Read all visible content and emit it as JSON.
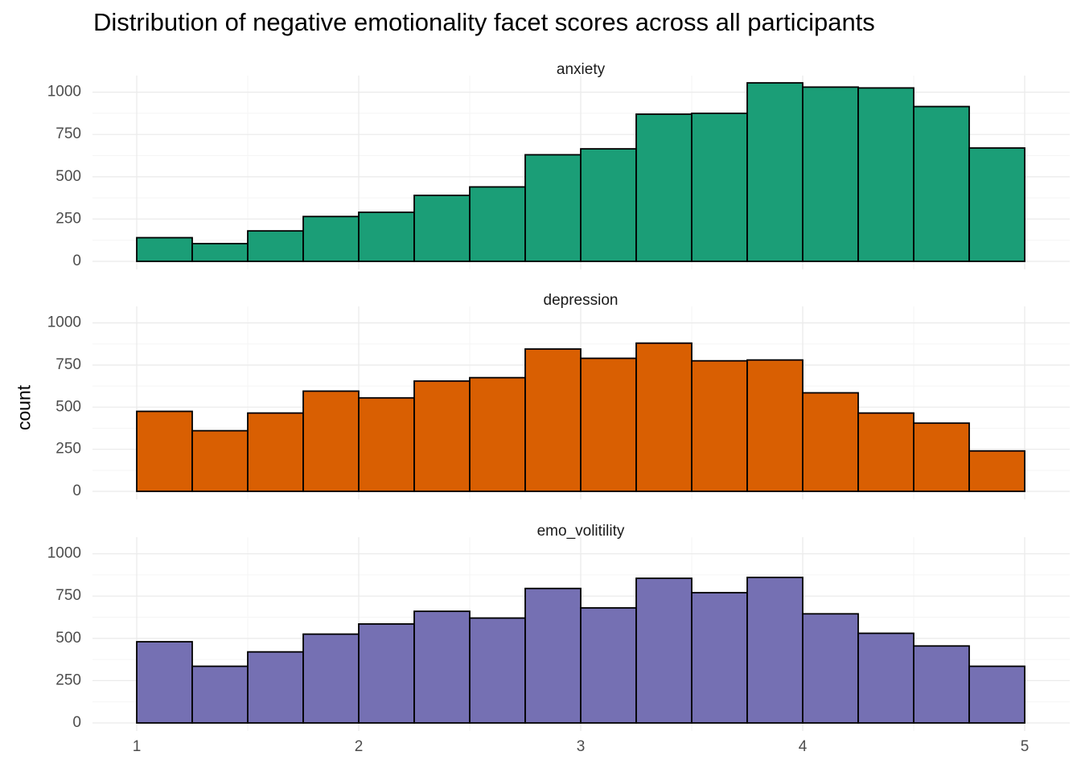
{
  "chart_data": {
    "type": "bar",
    "title": "Distribution of negative emotionality facet scores across all participants",
    "xlabel": "",
    "ylabel": "count",
    "xlim": [
      1,
      5
    ],
    "ylim": [
      0,
      1060
    ],
    "x_ticks": [
      1,
      2,
      3,
      4,
      5
    ],
    "y_ticks": [
      0,
      250,
      500,
      750,
      1000
    ],
    "grid": true,
    "bin_edges": [
      1,
      1.25,
      1.5,
      1.75,
      2,
      2.25,
      2.5,
      2.75,
      3,
      3.25,
      3.5,
      3.75,
      4,
      4.25,
      4.5,
      4.75,
      5
    ],
    "panels": [
      {
        "name": "anxiety",
        "color": "#1B9E77",
        "values": [
          140,
          105,
          180,
          265,
          290,
          390,
          440,
          630,
          665,
          870,
          875,
          1055,
          1030,
          1025,
          915,
          670
        ]
      },
      {
        "name": "depression",
        "color": "#D95F02",
        "values": [
          475,
          360,
          465,
          595,
          555,
          655,
          675,
          845,
          790,
          880,
          775,
          780,
          585,
          465,
          405,
          240
        ]
      },
      {
        "name": "emo_volitility",
        "color": "#7570B3",
        "values": [
          480,
          335,
          420,
          525,
          585,
          660,
          620,
          795,
          680,
          855,
          770,
          860,
          645,
          530,
          455,
          335
        ]
      }
    ]
  }
}
